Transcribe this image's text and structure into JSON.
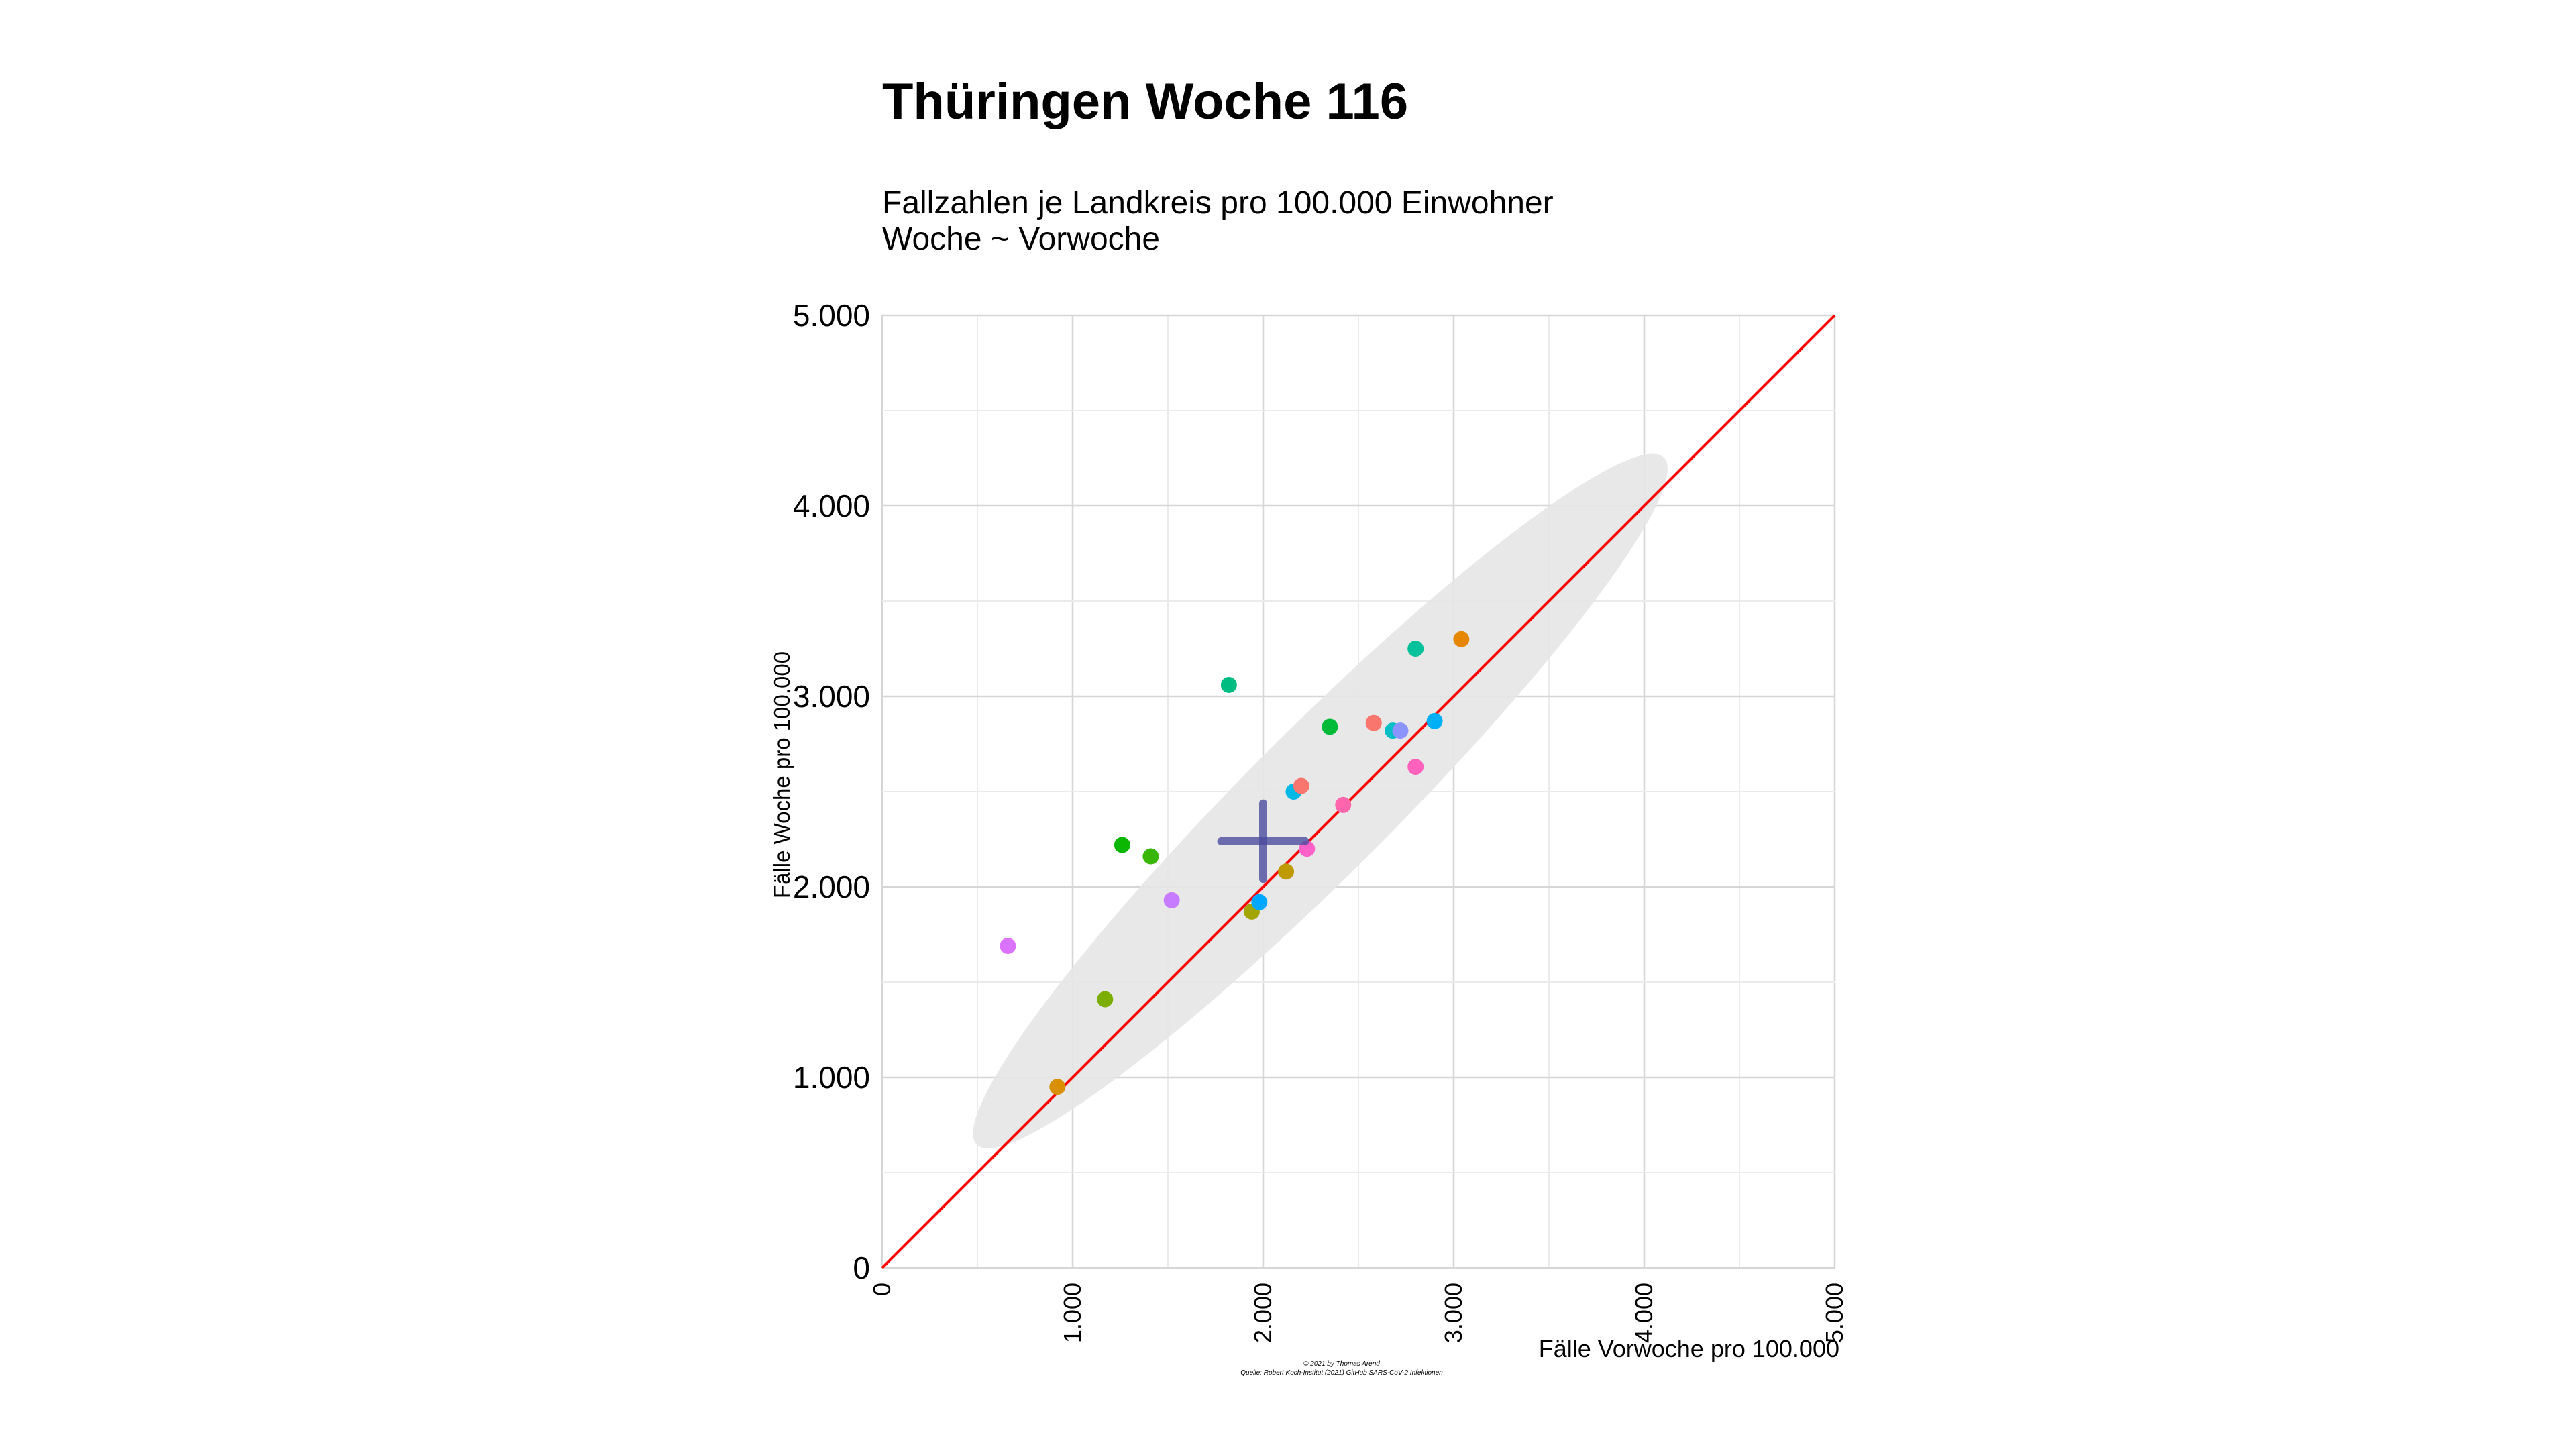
{
  "chart_data": {
    "type": "scatter",
    "title": "Thüringen Woche 116",
    "subtitle_lines": [
      "Fallzahlen je Landkreis pro 100.000 Einwohner",
      "Woche ~ Vorwoche"
    ],
    "xlabel": "Fälle Vorwoche pro 100.000",
    "ylabel": "Fälle Woche pro 100.000",
    "xlim": [
      0,
      5000
    ],
    "ylim": [
      0,
      5000
    ],
    "x_ticks": [
      0,
      1000,
      2000,
      3000,
      4000,
      5000
    ],
    "x_tick_labels": [
      "0",
      "1.000",
      "2.000",
      "3.000",
      "4.000",
      "5.000"
    ],
    "y_ticks": [
      0,
      1000,
      2000,
      3000,
      4000,
      5000
    ],
    "y_tick_labels": [
      "0",
      "1.000",
      "2.000",
      "3.000",
      "4.000",
      "5.000"
    ],
    "grid": true,
    "legend": "none",
    "reference_line": {
      "from": [
        0,
        0
      ],
      "to": [
        5000,
        5000
      ],
      "color": "#ff0000"
    },
    "mean_marker": {
      "x": 2000,
      "y": 2240,
      "color": "#4b4b9e"
    },
    "ellipse": {
      "cx": 2300,
      "cy": 2450,
      "semi_major": 2550,
      "semi_minor": 380,
      "angle_deg": 45,
      "color": "#e6e6e6"
    },
    "points": [
      {
        "x": 920,
        "y": 950,
        "color": "#D89000"
      },
      {
        "x": 660,
        "y": 1690,
        "color": "#DB72FB"
      },
      {
        "x": 1170,
        "y": 1410,
        "color": "#7CAE00"
      },
      {
        "x": 1260,
        "y": 2220,
        "color": "#0CB702"
      },
      {
        "x": 1410,
        "y": 2160,
        "color": "#39B600"
      },
      {
        "x": 1520,
        "y": 1930,
        "color": "#C77CFF"
      },
      {
        "x": 1820,
        "y": 3060,
        "color": "#00BC80"
      },
      {
        "x": 1940,
        "y": 1870,
        "color": "#A3A500"
      },
      {
        "x": 1980,
        "y": 1920,
        "color": "#00A9FF"
      },
      {
        "x": 2120,
        "y": 2080,
        "color": "#C09B00"
      },
      {
        "x": 2160,
        "y": 2500,
        "color": "#00B8E5"
      },
      {
        "x": 2200,
        "y": 2530,
        "color": "#F8766D"
      },
      {
        "x": 2230,
        "y": 2200,
        "color": "#FF61C9"
      },
      {
        "x": 2350,
        "y": 2840,
        "color": "#00BA38"
      },
      {
        "x": 2420,
        "y": 2430,
        "color": "#FF65AC"
      },
      {
        "x": 2580,
        "y": 2860,
        "color": "#F8766D"
      },
      {
        "x": 2680,
        "y": 2820,
        "color": "#00BFC4"
      },
      {
        "x": 2720,
        "y": 2820,
        "color": "#8B93FF"
      },
      {
        "x": 2800,
        "y": 3250,
        "color": "#00C19A"
      },
      {
        "x": 2800,
        "y": 2630,
        "color": "#FF62BC"
      },
      {
        "x": 2900,
        "y": 2870,
        "color": "#00B0F6"
      },
      {
        "x": 3040,
        "y": 3300,
        "color": "#E58700"
      }
    ],
    "caption_lines": [
      "© 2021 by Thomas Arend",
      "Quelle: Robert Koch-Institut (2021) GitHub SARS-CoV-2 Infektionen"
    ]
  }
}
